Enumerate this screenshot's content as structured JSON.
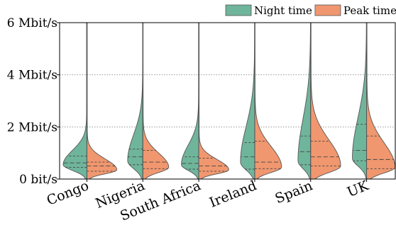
{
  "chart_data": {
    "type": "violin",
    "title": "",
    "xlabel": "",
    "ylabel": "",
    "ylim": [
      0,
      6
    ],
    "y_ticks": [
      0,
      2,
      4,
      6
    ],
    "y_tick_labels": [
      "0 bit/s",
      "2 Mbit/s",
      "4 Mbit/s",
      "6 Mbit/s"
    ],
    "grid": "horizontal dotted at 2, 4, 6",
    "legend_position": "top-right",
    "categories": [
      "Congo",
      "Nigeria",
      "South Africa",
      "Ireland",
      "Spain",
      "UK"
    ],
    "series": [
      {
        "name": "Night time",
        "color": "#6fb59b",
        "side": "left",
        "distributions": [
          {
            "peak": 0.55,
            "max_width": 0.75,
            "spread_low": 0.22,
            "spread_high": 0.55,
            "q1": 0.45,
            "median": 0.62,
            "q3": 0.88
          },
          {
            "peak": 0.7,
            "max_width": 0.48,
            "spread_low": 0.3,
            "spread_high": 1.0,
            "q1": 0.55,
            "median": 0.85,
            "q3": 1.15
          },
          {
            "peak": 0.55,
            "max_width": 0.55,
            "spread_low": 0.22,
            "spread_high": 0.75,
            "q1": 0.38,
            "median": 0.6,
            "q3": 0.85
          },
          {
            "peak": 0.65,
            "max_width": 0.45,
            "spread_low": 0.3,
            "spread_high": 1.35,
            "q1": 0.38,
            "median": 0.85,
            "q3": 1.4
          },
          {
            "peak": 0.7,
            "max_width": 0.4,
            "spread_low": 0.3,
            "spread_high": 1.6,
            "q1": 0.55,
            "median": 1.05,
            "q3": 1.65
          },
          {
            "peak": 0.8,
            "max_width": 0.45,
            "spread_low": 0.3,
            "spread_high": 1.55,
            "q1": 0.7,
            "median": 1.1,
            "q3": 2.1
          }
        ]
      },
      {
        "name": "Peak time",
        "color": "#f0976f",
        "side": "right",
        "distributions": [
          {
            "peak": 0.35,
            "max_width": 0.95,
            "spread_low": 0.15,
            "spread_high": 0.42,
            "q1": 0.3,
            "median": 0.5,
            "q3": 0.65
          },
          {
            "peak": 0.45,
            "max_width": 0.82,
            "spread_low": 0.2,
            "spread_high": 0.55,
            "q1": 0.4,
            "median": 0.65,
            "q3": 1.1
          },
          {
            "peak": 0.35,
            "max_width": 0.95,
            "spread_low": 0.15,
            "spread_high": 0.4,
            "q1": 0.3,
            "median": 0.5,
            "q3": 0.8
          },
          {
            "peak": 0.45,
            "max_width": 0.85,
            "spread_low": 0.2,
            "spread_high": 0.8,
            "q1": 0.4,
            "median": 0.65,
            "q3": 1.45
          },
          {
            "peak": 0.5,
            "max_width": 0.95,
            "spread_low": 0.25,
            "spread_high": 1.0,
            "q1": 0.5,
            "median": 0.85,
            "q3": 1.45
          },
          {
            "peak": 0.45,
            "max_width": 0.9,
            "spread_low": 0.22,
            "spread_high": 0.95,
            "q1": 0.4,
            "median": 0.75,
            "q3": 1.65
          }
        ]
      }
    ]
  }
}
